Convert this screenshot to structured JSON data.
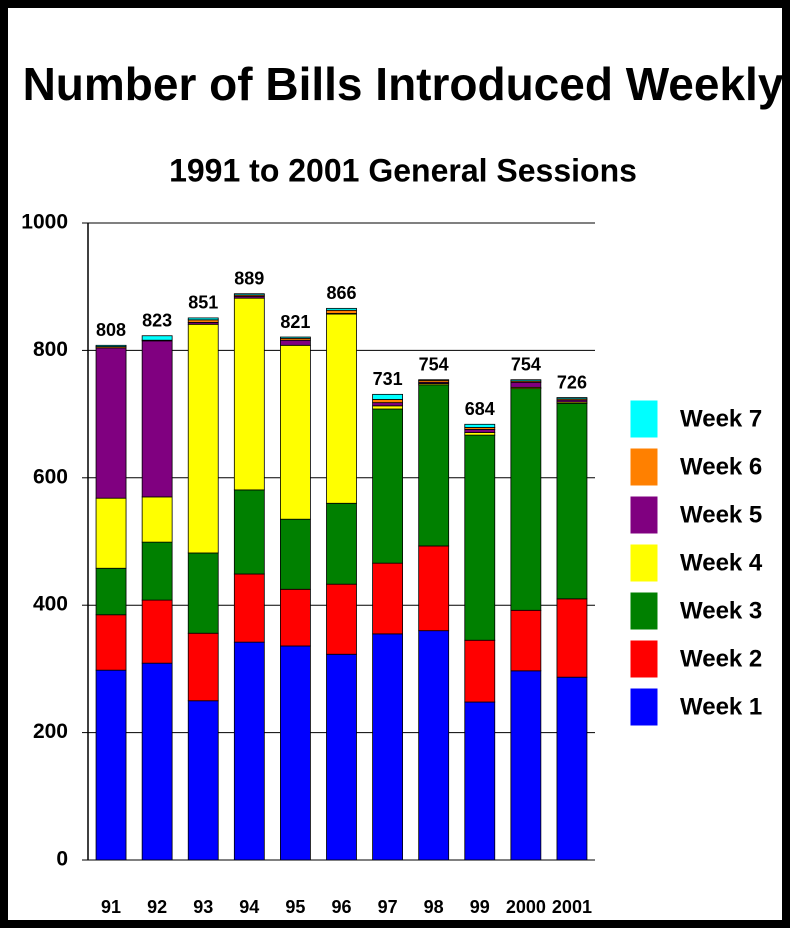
{
  "chart_data": {
    "type": "stacked_bar",
    "title": "Number of Bills Introduced Weekly",
    "subtitle": "1991 to 2001 General Sessions",
    "categories": [
      "91",
      "92",
      "93",
      "94",
      "95",
      "96",
      "97",
      "98",
      "99",
      "2000",
      "2001"
    ],
    "totals": [
      808,
      823,
      851,
      889,
      821,
      866,
      731,
      754,
      684,
      754,
      726
    ],
    "series": [
      {
        "name": "Week 1",
        "color": "#0000ff",
        "values": [
          298,
          309,
          250,
          342,
          336,
          323,
          355,
          360,
          248,
          297,
          287
        ]
      },
      {
        "name": "Week 2",
        "color": "#ff0000",
        "values": [
          87,
          99,
          106,
          107,
          89,
          110,
          111,
          133,
          97,
          95,
          123
        ]
      },
      {
        "name": "Week 3",
        "color": "#008000",
        "values": [
          73,
          91,
          126,
          132,
          110,
          127,
          242,
          253,
          322,
          348,
          307
        ]
      },
      {
        "name": "Week 4",
        "color": "#ffff00",
        "values": [
          110,
          71,
          359,
          301,
          273,
          297,
          5,
          2,
          4,
          2,
          2
        ]
      },
      {
        "name": "Week 5",
        "color": "#800080",
        "values": [
          236,
          245,
          3,
          3,
          8,
          1,
          5,
          2,
          5,
          8,
          3
        ]
      },
      {
        "name": "Week 6",
        "color": "#ff8000",
        "values": [
          2,
          1,
          4,
          2,
          3,
          5,
          5,
          3,
          3,
          2,
          2
        ]
      },
      {
        "name": "Week 7",
        "color": "#00ffff",
        "values": [
          2,
          7,
          3,
          2,
          2,
          3,
          8,
          1,
          5,
          2,
          2
        ]
      }
    ],
    "ylim": [
      0,
      1000
    ],
    "yticks": [
      0,
      200,
      400,
      600,
      800,
      1000
    ],
    "grid": true,
    "legend": "right"
  }
}
